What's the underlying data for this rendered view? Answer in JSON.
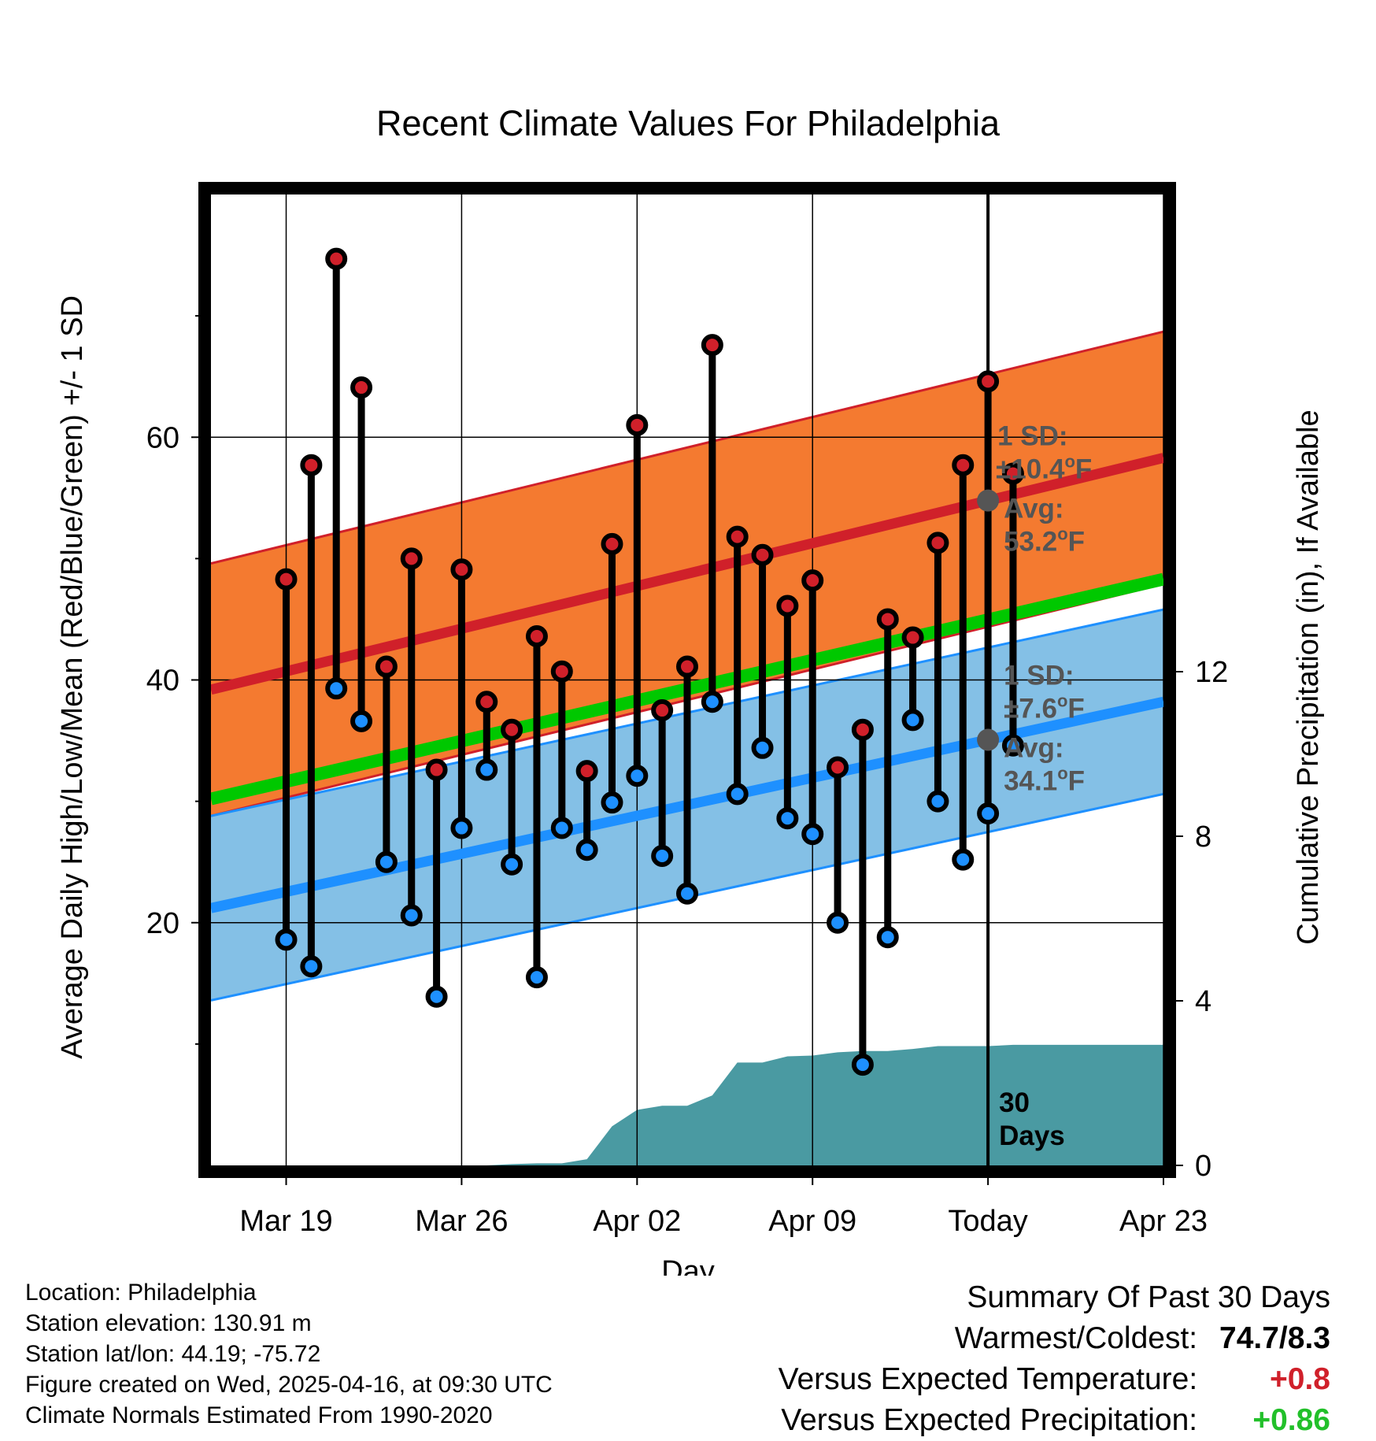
{
  "chart_data": {
    "type": "line",
    "title": "Recent Climate Values For Philadelphia",
    "xlabel": "Day",
    "ylabel": "Average Daily High/Low/Mean (Red/Blue/Green) +/- 1 SD",
    "y2label": "Cumulative Precipitation (in), If Available",
    "x_range": [
      -3,
      35
    ],
    "ylim": [
      0,
      80
    ],
    "y2lim": [
      0,
      23.6
    ],
    "x_ticks": [
      {
        "day": 0,
        "label": "Mar 19"
      },
      {
        "day": 7,
        "label": "Mar 26"
      },
      {
        "day": 14,
        "label": "Apr 02"
      },
      {
        "day": 21,
        "label": "Apr 09"
      },
      {
        "day": 28,
        "label": "Today"
      },
      {
        "day": 35,
        "label": "Apr 23"
      }
    ],
    "y_ticks": [
      20,
      40,
      60
    ],
    "y_minor_ticks": [
      10,
      30,
      50,
      70
    ],
    "y2_ticks": [
      0,
      4,
      8,
      12
    ],
    "today_day": 28,
    "normal_high": {
      "start": 39.2,
      "end": 58.3
    },
    "normal_low": {
      "start": 21.2,
      "end": 38.2
    },
    "normal_mean": {
      "start": 30.2,
      "end": 48.3
    },
    "sd_high": 10.4,
    "sd_low": 7.6,
    "daily_high": [
      48.3,
      57.7,
      74.7,
      64.1,
      41.1,
      50.0,
      32.6,
      49.1,
      38.2,
      35.9,
      43.6,
      40.7,
      32.5,
      51.2,
      61.0,
      37.5,
      41.1,
      67.6,
      51.8,
      50.3,
      46.1,
      48.2,
      32.8,
      35.9,
      45.0,
      43.5,
      51.3,
      57.7,
      64.6,
      57.0
    ],
    "daily_low": [
      18.6,
      16.4,
      39.3,
      36.6,
      25.0,
      20.6,
      13.9,
      27.8,
      32.6,
      24.8,
      15.5,
      27.8,
      26.0,
      29.9,
      32.1,
      25.5,
      22.4,
      38.2,
      30.6,
      34.4,
      28.6,
      27.3,
      20.0,
      8.3,
      18.8,
      36.7,
      30.0,
      25.2,
      29.0,
      34.6
    ],
    "precip_cumulative": [
      0,
      0,
      0,
      0,
      0,
      0,
      0,
      0,
      0,
      0.03,
      0.05,
      0.05,
      0.15,
      0.95,
      1.35,
      1.45,
      1.45,
      1.7,
      2.5,
      2.5,
      2.65,
      2.67,
      2.75,
      2.78,
      2.78,
      2.83,
      2.9,
      2.9,
      2.9,
      2.93
    ],
    "precip_projection": 2.93,
    "annotations": {
      "high_sd_line1": "1 SD:",
      "high_sd_line2": "±10.4",
      "high_avg_line1": "Avg:",
      "high_avg_line2": "53.2",
      "low_sd_line1": "1 SD:",
      "low_sd_line2": "±7.6",
      "low_avg_line1": "Avg:",
      "low_avg_line2": "34.1",
      "deg": "o",
      "unit": "F",
      "days_line1": "30",
      "days_line2": "Days"
    },
    "colors": {
      "high": "#d0202a",
      "high_band": "#f47a30",
      "low": "#1e90ff",
      "low_band": "#84c0e6",
      "mean": "#00c800",
      "overlap": "#9a1a1c",
      "precip": "#4a9aa2"
    }
  },
  "footer": {
    "location": "Location: Philadelphia",
    "elevation": "Station elevation: 130.91 m",
    "latlon": "Station lat/lon: 44.19; -75.72",
    "created": "Figure created on Wed, 2025-04-16, at 09:30 UTC",
    "normals": "Climate Normals Estimated From 1990-2020"
  },
  "summary": {
    "title": "Summary Of Past 30 Days",
    "warmest_label": "Warmest/Coldest:",
    "warmest_value": "74.7/8.3",
    "temp_label": "Versus Expected Temperature:",
    "temp_value": "+0.8",
    "precip_label": "Versus Expected Precipitation:",
    "precip_value": "+0.86"
  }
}
